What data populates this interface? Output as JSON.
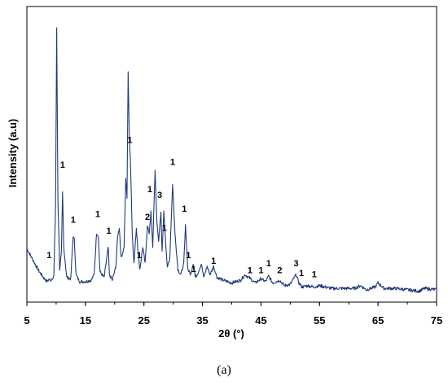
{
  "caption": "(a)",
  "chart_data": {
    "type": "line",
    "title": "",
    "xlabel": "2θ (°)",
    "ylabel": "Intensity (a.u)",
    "xlim": [
      5,
      75
    ],
    "ylim": [
      0,
      100
    ],
    "x_ticks": [
      "5",
      "15",
      "25",
      "35",
      "45",
      "55",
      "65",
      "75"
    ],
    "grid": false,
    "legend": "none",
    "line_color": "#1f3a7a",
    "series": [
      {
        "values": [
          [
            5.0,
            19.5
          ],
          [
            6.0,
            15.5
          ],
          [
            7.0,
            11.5
          ],
          [
            8.0,
            8.5
          ],
          [
            8.5,
            7.5
          ],
          [
            8.8,
            8.5
          ],
          [
            9.0,
            7.8
          ],
          [
            9.6,
            9.5
          ],
          [
            9.9,
            35
          ],
          [
            10.1,
            100
          ],
          [
            10.3,
            38
          ],
          [
            10.6,
            12
          ],
          [
            10.9,
            18
          ],
          [
            11.1,
            40
          ],
          [
            11.3,
            20
          ],
          [
            11.8,
            9
          ],
          [
            12.5,
            8.5
          ],
          [
            12.9,
            24
          ],
          [
            13.1,
            23
          ],
          [
            13.4,
            10
          ],
          [
            14.0,
            7.5
          ],
          [
            15.0,
            7.5
          ],
          [
            16.0,
            8
          ],
          [
            16.5,
            10
          ],
          [
            16.9,
            25
          ],
          [
            17.2,
            24
          ],
          [
            17.5,
            11
          ],
          [
            18.2,
            9
          ],
          [
            18.9,
            20
          ],
          [
            19.1,
            10
          ],
          [
            19.6,
            8
          ],
          [
            20.2,
            13
          ],
          [
            20.5,
            24
          ],
          [
            20.8,
            27
          ],
          [
            21.1,
            16
          ],
          [
            21.6,
            20
          ],
          [
            21.9,
            45
          ],
          [
            22.1,
            38
          ],
          [
            22.3,
            84
          ],
          [
            22.5,
            60
          ],
          [
            22.7,
            51
          ],
          [
            23.0,
            25
          ],
          [
            23.3,
            14
          ],
          [
            23.7,
            27
          ],
          [
            24.0,
            18
          ],
          [
            24.3,
            12
          ],
          [
            24.8,
            20
          ],
          [
            25.2,
            14
          ],
          [
            25.6,
            28
          ],
          [
            25.9,
            25
          ],
          [
            26.2,
            33
          ],
          [
            26.5,
            20
          ],
          [
            26.9,
            48
          ],
          [
            27.2,
            30
          ],
          [
            27.5,
            22
          ],
          [
            27.9,
            33
          ],
          [
            28.1,
            18
          ],
          [
            28.4,
            33
          ],
          [
            28.7,
            22
          ],
          [
            29.0,
            13
          ],
          [
            29.4,
            15
          ],
          [
            29.9,
            43
          ],
          [
            30.3,
            25
          ],
          [
            30.8,
            12
          ],
          [
            31.3,
            10
          ],
          [
            31.8,
            14
          ],
          [
            32.1,
            28
          ],
          [
            32.5,
            12
          ],
          [
            33.0,
            10
          ],
          [
            33.4,
            14
          ],
          [
            33.8,
            9
          ],
          [
            34.3,
            11
          ],
          [
            34.8,
            14
          ],
          [
            35.2,
            9
          ],
          [
            35.8,
            13
          ],
          [
            36.3,
            10
          ],
          [
            36.9,
            13
          ],
          [
            37.5,
            9
          ],
          [
            38.5,
            8
          ],
          [
            40.0,
            7
          ],
          [
            41.5,
            8
          ],
          [
            42.3,
            10
          ],
          [
            43.2,
            8.5
          ],
          [
            44.0,
            7
          ],
          [
            45.0,
            8.5
          ],
          [
            45.8,
            7.5
          ],
          [
            46.3,
            9.5
          ],
          [
            47.0,
            7
          ],
          [
            48.2,
            8
          ],
          [
            49.0,
            6
          ],
          [
            50.0,
            6.5
          ],
          [
            51.0,
            10
          ],
          [
            51.5,
            7
          ],
          [
            52.0,
            5.5
          ],
          [
            53.0,
            6
          ],
          [
            54.0,
            5.5
          ],
          [
            55.0,
            6
          ],
          [
            57.0,
            5
          ],
          [
            59.0,
            5
          ],
          [
            61.0,
            5
          ],
          [
            62.0,
            6
          ],
          [
            63.0,
            4.5
          ],
          [
            64.5,
            5.5
          ],
          [
            65.0,
            7
          ],
          [
            66.0,
            5
          ],
          [
            68.0,
            5
          ],
          [
            70.0,
            4.5
          ],
          [
            72.0,
            4
          ],
          [
            73.0,
            5
          ],
          [
            75.0,
            4.5
          ]
        ]
      }
    ],
    "annotations": [
      {
        "text": "1",
        "x": 8.8,
        "y": 16
      },
      {
        "text": "1",
        "x": 11.1,
        "y": 49
      },
      {
        "text": "1",
        "x": 12.9,
        "y": 29
      },
      {
        "text": "1",
        "x": 17.1,
        "y": 31
      },
      {
        "text": "1",
        "x": 19.0,
        "y": 25
      },
      {
        "text": "1",
        "x": 22.6,
        "y": 58
      },
      {
        "text": "1",
        "x": 24.2,
        "y": 16
      },
      {
        "text": "2",
        "x": 25.6,
        "y": 30
      },
      {
        "text": "1",
        "x": 26.0,
        "y": 40
      },
      {
        "text": "3",
        "x": 27.7,
        "y": 38
      },
      {
        "text": "1",
        "x": 28.5,
        "y": 26
      },
      {
        "text": "1",
        "x": 29.9,
        "y": 50
      },
      {
        "text": "1",
        "x": 31.9,
        "y": 33
      },
      {
        "text": "1",
        "x": 32.6,
        "y": 16
      },
      {
        "text": "1",
        "x": 33.5,
        "y": 11
      },
      {
        "text": "1",
        "x": 36.9,
        "y": 14
      },
      {
        "text": "1",
        "x": 43.1,
        "y": 10.5
      },
      {
        "text": "1",
        "x": 45.0,
        "y": 10.5
      },
      {
        "text": "1",
        "x": 46.3,
        "y": 13
      },
      {
        "text": "2",
        "x": 48.2,
        "y": 10.5
      },
      {
        "text": "3",
        "x": 51.0,
        "y": 13
      },
      {
        "text": "1",
        "x": 51.9,
        "y": 9.5
      },
      {
        "text": "1",
        "x": 54.1,
        "y": 9
      }
    ]
  }
}
